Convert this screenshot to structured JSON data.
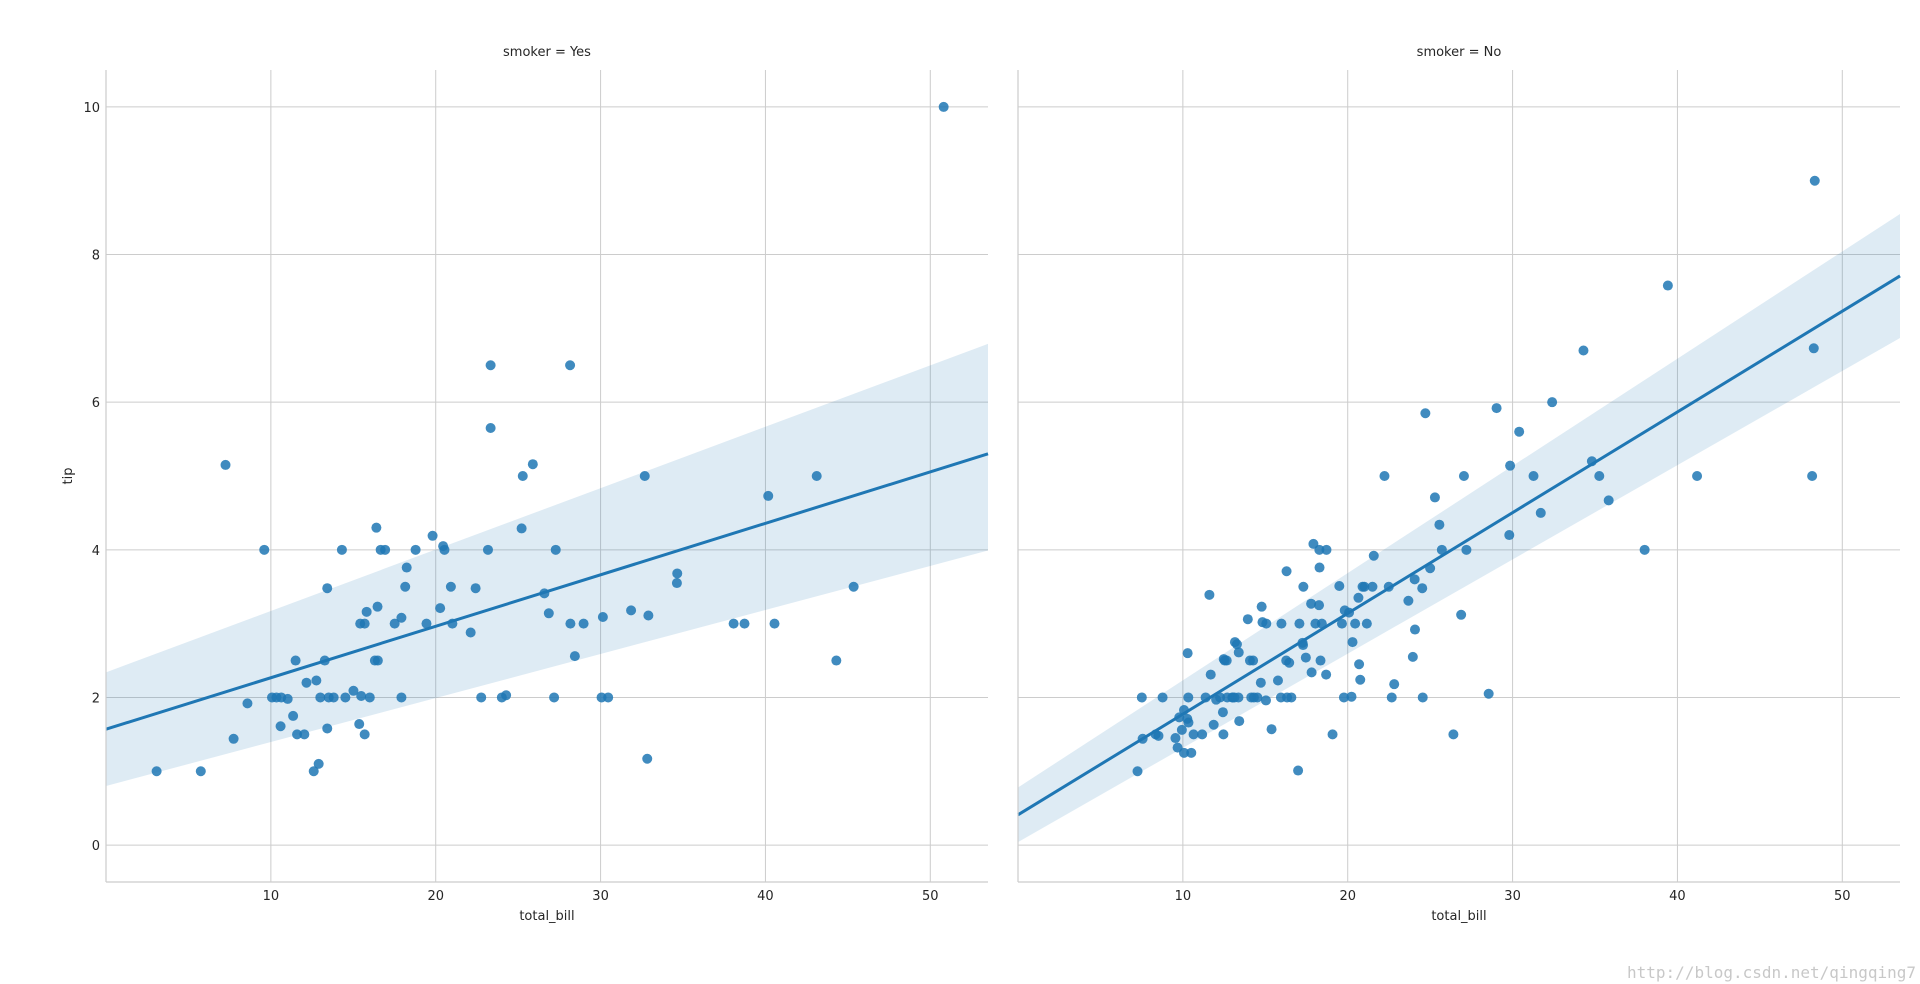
{
  "chart_data": [
    {
      "type": "scatter",
      "title": "smoker = Yes",
      "xlabel": "total_bill",
      "ylabel": "tip",
      "xlim": [
        0,
        53.5
      ],
      "ylim": [
        -0.5,
        10.5
      ],
      "xticks": [
        "10",
        "20",
        "30",
        "40",
        "50"
      ],
      "yticks": [
        "0",
        "2",
        "4",
        "6",
        "8",
        "10"
      ],
      "grid": true,
      "color": "#1f77b4",
      "points": [
        [
          3.07,
          1.0
        ],
        [
          5.75,
          1.0
        ],
        [
          7.25,
          5.15
        ],
        [
          7.74,
          1.44
        ],
        [
          8.58,
          1.92
        ],
        [
          9.6,
          4.0
        ],
        [
          10.07,
          2.0
        ],
        [
          10.34,
          2.0
        ],
        [
          10.59,
          1.61
        ],
        [
          10.63,
          2.0
        ],
        [
          11.02,
          1.98
        ],
        [
          11.35,
          1.75
        ],
        [
          11.5,
          2.5
        ],
        [
          11.59,
          1.5
        ],
        [
          12.03,
          1.5
        ],
        [
          12.16,
          2.2
        ],
        [
          12.6,
          1.0
        ],
        [
          12.76,
          2.23
        ],
        [
          12.9,
          1.1
        ],
        [
          13.0,
          2.0
        ],
        [
          13.27,
          2.5
        ],
        [
          13.42,
          1.58
        ],
        [
          13.42,
          3.48
        ],
        [
          13.51,
          2.0
        ],
        [
          13.81,
          2.0
        ],
        [
          14.31,
          4.0
        ],
        [
          14.52,
          2.0
        ],
        [
          15.01,
          2.09
        ],
        [
          15.36,
          1.64
        ],
        [
          15.42,
          3.0
        ],
        [
          15.48,
          2.02
        ],
        [
          15.69,
          3.0
        ],
        [
          15.69,
          1.5
        ],
        [
          15.81,
          3.16
        ],
        [
          16.0,
          2.0
        ],
        [
          16.31,
          2.5
        ],
        [
          16.4,
          4.3
        ],
        [
          16.47,
          3.23
        ],
        [
          16.49,
          2.5
        ],
        [
          16.66,
          4.0
        ],
        [
          16.93,
          4.0
        ],
        [
          17.51,
          3.0
        ],
        [
          17.92,
          3.08
        ],
        [
          17.92,
          2.0
        ],
        [
          18.15,
          3.5
        ],
        [
          18.24,
          3.76
        ],
        [
          18.78,
          4.0
        ],
        [
          19.44,
          3.0
        ],
        [
          19.81,
          4.19
        ],
        [
          20.27,
          3.21
        ],
        [
          20.45,
          4.05
        ],
        [
          20.53,
          4.0
        ],
        [
          20.92,
          3.5
        ],
        [
          21.01,
          3.0
        ],
        [
          22.12,
          2.88
        ],
        [
          22.42,
          3.48
        ],
        [
          22.76,
          2.0
        ],
        [
          23.17,
          4.0
        ],
        [
          23.33,
          6.5
        ],
        [
          23.33,
          5.65
        ],
        [
          24.01,
          2.0
        ],
        [
          24.27,
          2.03
        ],
        [
          25.21,
          4.29
        ],
        [
          25.28,
          5.0
        ],
        [
          25.89,
          5.16
        ],
        [
          26.59,
          3.41
        ],
        [
          26.86,
          3.14
        ],
        [
          27.18,
          2.0
        ],
        [
          27.28,
          4.0
        ],
        [
          28.15,
          6.5
        ],
        [
          28.17,
          3.0
        ],
        [
          28.44,
          2.56
        ],
        [
          28.97,
          3.0
        ],
        [
          30.06,
          2.0
        ],
        [
          30.14,
          3.09
        ],
        [
          30.46,
          2.0
        ],
        [
          31.85,
          3.18
        ],
        [
          32.68,
          5.0
        ],
        [
          32.83,
          1.17
        ],
        [
          32.9,
          3.11
        ],
        [
          34.63,
          3.55
        ],
        [
          34.65,
          3.68
        ],
        [
          38.07,
          3.0
        ],
        [
          38.73,
          3.0
        ],
        [
          40.17,
          4.73
        ],
        [
          40.55,
          3.0
        ],
        [
          43.11,
          5.0
        ],
        [
          44.3,
          2.5
        ],
        [
          45.35,
          3.5
        ],
        [
          50.81,
          10.0
        ]
      ],
      "regression": {
        "x": [
          0,
          53.5
        ],
        "y": [
          1.57,
          5.3
        ],
        "ci_lower": [
          0.8,
          3.99
        ],
        "ci_upper": [
          2.34,
          6.79
        ]
      }
    },
    {
      "type": "scatter",
      "title": "smoker = No",
      "xlabel": "total_bill",
      "ylabel": "",
      "xlim": [
        0,
        53.5
      ],
      "ylim": [
        -0.5,
        10.5
      ],
      "xticks": [
        "10",
        "20",
        "30",
        "40",
        "50"
      ],
      "yticks": [
        "0",
        "2",
        "4",
        "6",
        "8",
        "10"
      ],
      "grid": true,
      "color": "#1f77b4",
      "points": [
        [
          7.25,
          1.0
        ],
        [
          7.51,
          2.0
        ],
        [
          7.56,
          1.44
        ],
        [
          8.35,
          1.5
        ],
        [
          8.52,
          1.48
        ],
        [
          8.77,
          2.0
        ],
        [
          9.55,
          1.45
        ],
        [
          9.68,
          1.32
        ],
        [
          9.78,
          1.73
        ],
        [
          9.94,
          1.56
        ],
        [
          10.07,
          1.83
        ],
        [
          10.07,
          1.25
        ],
        [
          10.27,
          1.71
        ],
        [
          10.29,
          2.6
        ],
        [
          10.33,
          2.0
        ],
        [
          10.34,
          1.66
        ],
        [
          10.51,
          1.25
        ],
        [
          10.65,
          1.5
        ],
        [
          11.17,
          1.5
        ],
        [
          11.38,
          2.0
        ],
        [
          11.61,
          3.39
        ],
        [
          11.69,
          2.31
        ],
        [
          11.87,
          1.63
        ],
        [
          12.02,
          1.97
        ],
        [
          12.26,
          2.0
        ],
        [
          12.43,
          1.8
        ],
        [
          12.46,
          1.5
        ],
        [
          12.48,
          2.52
        ],
        [
          12.54,
          2.5
        ],
        [
          12.66,
          2.5
        ],
        [
          12.69,
          2.0
        ],
        [
          13.0,
          2.0
        ],
        [
          13.03,
          2.0
        ],
        [
          13.13,
          2.0
        ],
        [
          13.16,
          2.75
        ],
        [
          13.28,
          2.72
        ],
        [
          13.37,
          2.0
        ],
        [
          13.39,
          2.61
        ],
        [
          13.42,
          1.68
        ],
        [
          13.94,
          3.06
        ],
        [
          14.07,
          2.5
        ],
        [
          14.15,
          2.0
        ],
        [
          14.26,
          2.5
        ],
        [
          14.31,
          2.0
        ],
        [
          14.52,
          2.0
        ],
        [
          14.73,
          2.2
        ],
        [
          14.78,
          3.23
        ],
        [
          14.83,
          3.02
        ],
        [
          15.04,
          1.96
        ],
        [
          15.06,
          3.0
        ],
        [
          15.38,
          1.57
        ],
        [
          15.77,
          2.23
        ],
        [
          15.95,
          2.0
        ],
        [
          15.98,
          3.0
        ],
        [
          16.27,
          2.5
        ],
        [
          16.29,
          3.71
        ],
        [
          16.32,
          2.0
        ],
        [
          16.45,
          2.47
        ],
        [
          16.58,
          2.0
        ],
        [
          16.99,
          1.01
        ],
        [
          17.07,
          3.0
        ],
        [
          17.26,
          2.74
        ],
        [
          17.29,
          2.71
        ],
        [
          17.46,
          2.54
        ],
        [
          17.78,
          3.27
        ],
        [
          17.81,
          2.34
        ],
        [
          17.92,
          4.08
        ],
        [
          18.04,
          3.0
        ],
        [
          18.26,
          3.25
        ],
        [
          18.28,
          4.0
        ],
        [
          18.43,
          3.0
        ],
        [
          18.69,
          2.31
        ],
        [
          18.71,
          4.0
        ],
        [
          18.35,
          2.5
        ],
        [
          19.08,
          1.5
        ],
        [
          19.49,
          3.51
        ],
        [
          19.65,
          3.0
        ],
        [
          19.77,
          2.0
        ],
        [
          19.82,
          3.18
        ],
        [
          20.08,
          3.15
        ],
        [
          20.23,
          2.01
        ],
        [
          20.29,
          2.75
        ],
        [
          20.65,
          3.35
        ],
        [
          20.69,
          2.45
        ],
        [
          20.76,
          2.24
        ],
        [
          20.9,
          3.5
        ],
        [
          21.01,
          3.5
        ],
        [
          21.16,
          3.0
        ],
        [
          21.5,
          3.5
        ],
        [
          21.58,
          3.92
        ],
        [
          22.23,
          5.0
        ],
        [
          22.49,
          3.5
        ],
        [
          22.67,
          2.0
        ],
        [
          22.82,
          2.18
        ],
        [
          23.68,
          3.31
        ],
        [
          24.06,
          3.6
        ],
        [
          24.08,
          2.92
        ],
        [
          24.52,
          3.48
        ],
        [
          24.55,
          2.0
        ],
        [
          24.71,
          5.85
        ],
        [
          25.0,
          3.75
        ],
        [
          25.29,
          4.71
        ],
        [
          25.56,
          4.34
        ],
        [
          25.71,
          4.0
        ],
        [
          26.41,
          1.5
        ],
        [
          26.88,
          3.12
        ],
        [
          27.05,
          5.0
        ],
        [
          27.2,
          4.0
        ],
        [
          28.55,
          2.05
        ],
        [
          29.03,
          5.92
        ],
        [
          29.8,
          4.2
        ],
        [
          29.85,
          5.14
        ],
        [
          30.4,
          5.6
        ],
        [
          31.27,
          5.0
        ],
        [
          31.71,
          4.5
        ],
        [
          32.4,
          6.0
        ],
        [
          34.3,
          6.7
        ],
        [
          34.81,
          5.2
        ],
        [
          35.26,
          5.0
        ],
        [
          35.83,
          4.67
        ],
        [
          38.01,
          4.0
        ],
        [
          39.42,
          7.58
        ],
        [
          41.19,
          5.0
        ],
        [
          48.17,
          5.0
        ],
        [
          48.27,
          6.73
        ],
        [
          48.33,
          9.0
        ],
        [
          17.31,
          3.5
        ],
        [
          18.29,
          3.76
        ],
        [
          20.45,
          3.0
        ],
        [
          23.95,
          2.55
        ]
      ],
      "regression": {
        "x": [
          0,
          53.5
        ],
        "y": [
          0.41,
          7.71
        ],
        "ci_lower": [
          0.04,
          6.87
        ],
        "ci_upper": [
          0.78,
          8.55
        ]
      }
    }
  ],
  "watermark": "http://blog.csdn.net/qingqing7"
}
